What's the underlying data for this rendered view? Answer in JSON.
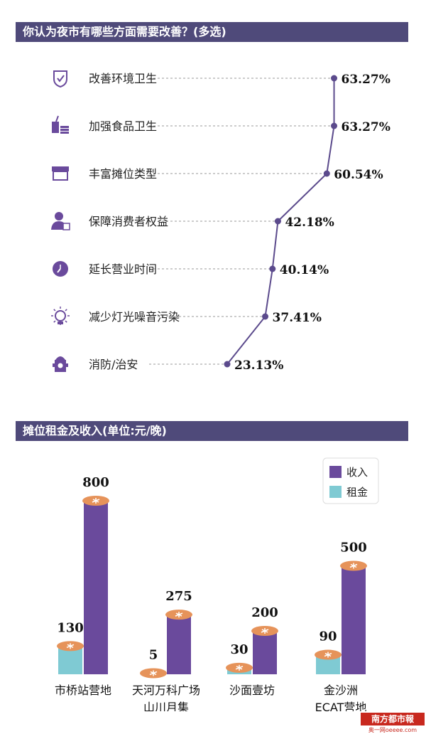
{
  "header1": {
    "title": "你认为夜市有哪些方面需要改善？(多选)"
  },
  "header2": {
    "title": "摊位租金及收入(单位:元/晚)"
  },
  "colors": {
    "header_bg": "#4f4a7a",
    "income": "#6a4a9c",
    "rent": "#7fcad3",
    "line": "#5b4a8c",
    "coin": "#e6935a",
    "icon": "#6a4a9c"
  },
  "chart_data": [
    {
      "type": "line",
      "title": "你认为夜市有哪些方面需要改善？(多选)",
      "categories": [
        "改善环境卫生",
        "加强食品卫生",
        "丰富摊位类型",
        "保障消费者权益",
        "延长营业时间",
        "减少灯光噪音污染",
        "消防/治安"
      ],
      "values": [
        63.27,
        63.27,
        60.54,
        42.18,
        40.14,
        37.41,
        23.13
      ],
      "value_labels": [
        "63.27%",
        "63.27%",
        "60.54%",
        "42.18%",
        "40.14%",
        "37.41%",
        "23.13%"
      ],
      "icons": [
        "shield-check-icon",
        "food-cup-icon",
        "stall-awning-icon",
        "person-badge-icon",
        "clock-icon",
        "light-bulb-icon",
        "fire-hydrant-icon"
      ],
      "orientation": "horizontal-values-vertical-categories"
    },
    {
      "type": "bar",
      "title": "摊位租金及收入(单位:元/晚)",
      "categories": [
        [
          "市桥站营地"
        ],
        [
          "天河万科广场",
          "山川月集"
        ],
        [
          "沙面壹坊"
        ],
        [
          "金沙洲",
          "ECAT营地"
        ]
      ],
      "series": [
        {
          "name": "租金",
          "values": [
            130,
            5,
            30,
            90
          ],
          "labels": [
            "130",
            "5",
            "30",
            "90"
          ]
        },
        {
          "name": "收入",
          "values": [
            800,
            275,
            200,
            500
          ],
          "labels": [
            "800",
            "275",
            "200",
            "500"
          ]
        }
      ],
      "legend": {
        "position": "top-right",
        "items": [
          "收入",
          "租金"
        ]
      },
      "ylim": [
        0,
        800
      ]
    }
  ],
  "logo": {
    "brand": "南方都市報",
    "sub": "奥一网oeeee.com"
  }
}
